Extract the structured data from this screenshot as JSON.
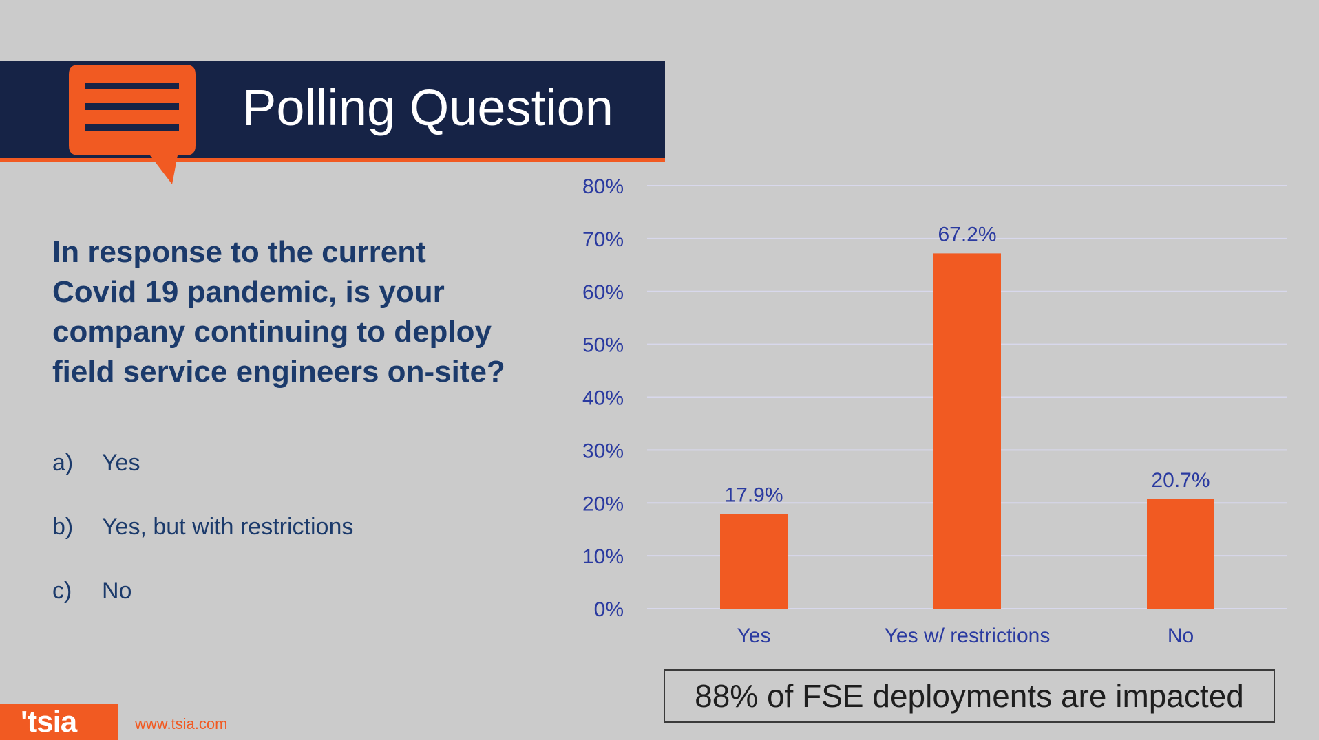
{
  "banner": {
    "title": "Polling Question",
    "icon": "speech-bubble-icon"
  },
  "question": "In response to the current Covid 19 pandemic, is your company continuing to deploy field service engineers on-site?",
  "options": [
    {
      "letter": "a)",
      "label": "Yes"
    },
    {
      "letter": "b)",
      "label": "Yes, but with restrictions"
    },
    {
      "letter": "c)",
      "label": "No"
    }
  ],
  "chart_data": {
    "type": "bar",
    "categories": [
      "Yes",
      "Yes w/ restrictions",
      "No"
    ],
    "values": [
      17.9,
      67.2,
      20.7
    ],
    "data_labels": [
      "17.9%",
      "67.2%",
      "20.7%"
    ],
    "ylim": [
      0,
      80
    ],
    "yticks": [
      "0%",
      "10%",
      "20%",
      "30%",
      "40%",
      "50%",
      "60%",
      "70%",
      "80%"
    ],
    "grid": true,
    "title": "",
    "xlabel": "",
    "ylabel": ""
  },
  "callout": "88% of FSE deployments are impacted",
  "footer": {
    "logo": "'tsia",
    "url": "www.tsia.com"
  },
  "colors": {
    "background": "#cbcbcb",
    "banner": "#162346",
    "accent": "#f15a22",
    "question_text": "#1b3a6b",
    "axis_text": "#2a3aa0",
    "gridline": "#d8d8ec"
  }
}
